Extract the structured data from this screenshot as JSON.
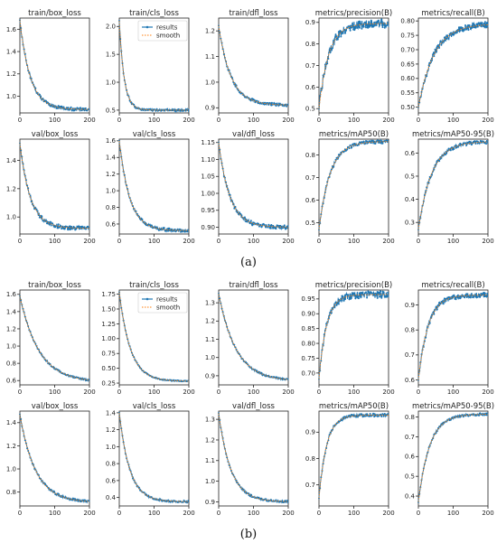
{
  "captions": {
    "a": "(a)",
    "b": "(b)"
  },
  "legend": {
    "results": "results",
    "smooth": "smooth"
  },
  "colors": {
    "results": "#1f77b4",
    "smooth": "#ff7f0e",
    "axis": "#222222"
  },
  "chart_data": [
    {
      "type": "line",
      "panel": "a",
      "title": "train/box_loss",
      "xlim": [
        0,
        200
      ],
      "ylim": [
        0.85,
        1.7
      ],
      "xticks": [
        0,
        100,
        200
      ],
      "yticks": [
        1.0,
        1.2,
        1.4,
        1.6
      ],
      "ytick_labels": [
        "1.0",
        "1.2",
        "1.4",
        "1.6"
      ],
      "y0": 1.68,
      "yend": 0.88,
      "k": 30,
      "noise": 0.015,
      "series": [
        {
          "name": "results"
        },
        {
          "name": "smooth"
        }
      ]
    },
    {
      "type": "line",
      "panel": "a",
      "title": "train/cls_loss",
      "xlim": [
        0,
        200
      ],
      "ylim": [
        0.45,
        2.15
      ],
      "xticks": [
        0,
        100,
        200
      ],
      "yticks": [
        0.5,
        1.0,
        1.5,
        2.0
      ],
      "ytick_labels": [
        "0.5",
        "1.0",
        "1.5",
        "2.0"
      ],
      "y0": 2.1,
      "yend": 0.5,
      "k": 14,
      "noise": 0.02,
      "legend": true,
      "series": [
        {
          "name": "results"
        },
        {
          "name": "smooth"
        }
      ]
    },
    {
      "type": "line",
      "panel": "a",
      "title": "train/dfl_loss",
      "xlim": [
        0,
        200
      ],
      "ylim": [
        0.88,
        1.25
      ],
      "xticks": [
        0,
        100,
        200
      ],
      "yticks": [
        0.9,
        1.0,
        1.1,
        1.2
      ],
      "ytick_labels": [
        "0.9",
        "1.0",
        "1.1",
        "1.2"
      ],
      "y0": 1.22,
      "yend": 0.91,
      "k": 35,
      "noise": 0.006,
      "series": [
        {
          "name": "results"
        },
        {
          "name": "smooth"
        }
      ]
    },
    {
      "type": "line",
      "panel": "a",
      "title": "metrics/precision(B)",
      "xlim": [
        0,
        200
      ],
      "ylim": [
        0.48,
        0.92
      ],
      "xticks": [
        0,
        100,
        200
      ],
      "yticks": [
        0.5,
        0.6,
        0.7,
        0.8,
        0.9
      ],
      "ytick_labels": [
        "0.5",
        "0.6",
        "0.7",
        "0.8",
        "0.9"
      ],
      "y0": 0.5,
      "yend": 0.895,
      "k": 28,
      "noise": 0.02,
      "series": [
        {
          "name": "results"
        },
        {
          "name": "smooth"
        }
      ]
    },
    {
      "type": "line",
      "panel": "a",
      "title": "metrics/recall(B)",
      "xlim": [
        0,
        200
      ],
      "ylim": [
        0.48,
        0.81
      ],
      "xticks": [
        0,
        100,
        200
      ],
      "yticks": [
        0.5,
        0.55,
        0.6,
        0.65,
        0.7,
        0.75,
        0.8
      ],
      "ytick_labels": [
        "0.50",
        "0.55",
        "0.60",
        "0.65",
        "0.70",
        "0.75",
        "0.80"
      ],
      "y0": 0.5,
      "yend": 0.79,
      "k": 45,
      "noise": 0.012,
      "series": [
        {
          "name": "results"
        },
        {
          "name": "smooth"
        }
      ]
    },
    {
      "type": "line",
      "panel": "a",
      "title": "val/box_loss",
      "xlim": [
        0,
        200
      ],
      "ylim": [
        0.88,
        1.55
      ],
      "xticks": [
        0,
        100,
        200
      ],
      "yticks": [
        1.0,
        1.2,
        1.4
      ],
      "ytick_labels": [
        "1.0",
        "1.2",
        "1.4"
      ],
      "y0": 1.52,
      "yend": 0.92,
      "k": 30,
      "noise": 0.015,
      "series": [
        {
          "name": "results"
        },
        {
          "name": "smooth"
        }
      ]
    },
    {
      "type": "line",
      "panel": "a",
      "title": "val/cls_loss",
      "xlim": [
        0,
        200
      ],
      "ylim": [
        0.48,
        1.62
      ],
      "xticks": [
        0,
        100,
        200
      ],
      "yticks": [
        0.6,
        0.8,
        1.0,
        1.2,
        1.4,
        1.6
      ],
      "ytick_labels": [
        "0.6",
        "0.8",
        "1.0",
        "1.2",
        "1.4",
        "1.6"
      ],
      "y0": 1.6,
      "yend": 0.52,
      "k": 30,
      "noise": 0.02,
      "series": [
        {
          "name": "results"
        },
        {
          "name": "smooth"
        }
      ]
    },
    {
      "type": "line",
      "panel": "a",
      "title": "val/dfl_loss",
      "xlim": [
        0,
        200
      ],
      "ylim": [
        0.88,
        1.16
      ],
      "xticks": [
        0,
        100,
        200
      ],
      "yticks": [
        0.9,
        0.95,
        1.0,
        1.05,
        1.1,
        1.15
      ],
      "ytick_labels": [
        "0.90",
        "0.95",
        "1.00",
        "1.05",
        "1.10",
        "1.15"
      ],
      "y0": 1.15,
      "yend": 0.9,
      "k": 32,
      "noise": 0.006,
      "series": [
        {
          "name": "results"
        },
        {
          "name": "smooth"
        }
      ]
    },
    {
      "type": "line",
      "panel": "a",
      "title": "metrics/mAP50(B)",
      "xlim": [
        0,
        200
      ],
      "ylim": [
        0.45,
        0.87
      ],
      "xticks": [
        0,
        100,
        200
      ],
      "yticks": [
        0.5,
        0.6,
        0.7,
        0.8
      ],
      "ytick_labels": [
        "0.5",
        "0.6",
        "0.7",
        "0.8"
      ],
      "y0": 0.47,
      "yend": 0.86,
      "k": 32,
      "noise": 0.008,
      "series": [
        {
          "name": "results"
        },
        {
          "name": "smooth"
        }
      ]
    },
    {
      "type": "line",
      "panel": "a",
      "title": "metrics/mAP50-95(B)",
      "xlim": [
        0,
        200
      ],
      "ylim": [
        0.25,
        0.66
      ],
      "xticks": [
        0,
        100,
        200
      ],
      "yticks": [
        0.3,
        0.4,
        0.5,
        0.6
      ],
      "ytick_labels": [
        "0.3",
        "0.4",
        "0.5",
        "0.6"
      ],
      "y0": 0.27,
      "yend": 0.65,
      "k": 38,
      "noise": 0.008,
      "series": [
        {
          "name": "results"
        },
        {
          "name": "smooth"
        }
      ]
    },
    {
      "type": "line",
      "panel": "b",
      "title": "train/box_loss",
      "xlim": [
        0,
        200
      ],
      "ylim": [
        0.55,
        1.65
      ],
      "xticks": [
        0,
        100,
        200
      ],
      "yticks": [
        0.6,
        0.8,
        1.0,
        1.2,
        1.4,
        1.6
      ],
      "ytick_labels": [
        "0.6",
        "0.8",
        "1.0",
        "1.2",
        "1.4",
        "1.6"
      ],
      "y0": 1.58,
      "yend": 0.58,
      "k": 55,
      "noise": 0.01,
      "series": [
        {
          "name": "results"
        },
        {
          "name": "smooth"
        }
      ]
    },
    {
      "type": "line",
      "panel": "b",
      "title": "train/cls_loss",
      "xlim": [
        0,
        200
      ],
      "ylim": [
        0.22,
        1.82
      ],
      "xticks": [
        0,
        100,
        200
      ],
      "yticks": [
        0.25,
        0.5,
        0.75,
        1.0,
        1.25,
        1.5,
        1.75
      ],
      "ytick_labels": [
        "0.25",
        "0.50",
        "0.75",
        "1.00",
        "1.25",
        "1.50",
        "1.75"
      ],
      "y0": 1.78,
      "yend": 0.28,
      "k": 32,
      "noise": 0.01,
      "legend": true,
      "series": [
        {
          "name": "results"
        },
        {
          "name": "smooth"
        }
      ]
    },
    {
      "type": "line",
      "panel": "b",
      "title": "train/dfl_loss",
      "xlim": [
        0,
        200
      ],
      "ylim": [
        0.85,
        1.37
      ],
      "xticks": [
        0,
        100,
        200
      ],
      "yticks": [
        0.9,
        1.0,
        1.1,
        1.2,
        1.3
      ],
      "ytick_labels": [
        "0.9",
        "1.0",
        "1.1",
        "1.2",
        "1.3"
      ],
      "y0": 1.35,
      "yend": 0.87,
      "k": 50,
      "noise": 0.005,
      "series": [
        {
          "name": "results"
        },
        {
          "name": "smooth"
        }
      ]
    },
    {
      "type": "line",
      "panel": "b",
      "title": "metrics/precision(B)",
      "xlim": [
        0,
        200
      ],
      "ylim": [
        0.66,
        0.98
      ],
      "xticks": [
        0,
        100,
        200
      ],
      "yticks": [
        0.7,
        0.75,
        0.8,
        0.85,
        0.9,
        0.95
      ],
      "ytick_labels": [
        "0.70",
        "0.75",
        "0.80",
        "0.85",
        "0.90",
        "0.95"
      ],
      "y0": 0.68,
      "yend": 0.965,
      "k": 22,
      "noise": 0.012,
      "series": [
        {
          "name": "results"
        },
        {
          "name": "smooth"
        }
      ]
    },
    {
      "type": "line",
      "panel": "b",
      "title": "metrics/recall(B)",
      "xlim": [
        0,
        200
      ],
      "ylim": [
        0.58,
        0.96
      ],
      "xticks": [
        0,
        100,
        200
      ],
      "yticks": [
        0.6,
        0.7,
        0.8,
        0.9
      ],
      "ytick_labels": [
        "0.6",
        "0.7",
        "0.8",
        "0.9"
      ],
      "y0": 0.6,
      "yend": 0.94,
      "k": 28,
      "noise": 0.01,
      "series": [
        {
          "name": "results"
        },
        {
          "name": "smooth"
        }
      ]
    },
    {
      "type": "line",
      "panel": "b",
      "title": "val/box_loss",
      "xlim": [
        0,
        200
      ],
      "ylim": [
        0.68,
        1.5
      ],
      "xticks": [
        0,
        100,
        200
      ],
      "yticks": [
        0.8,
        1.0,
        1.2,
        1.4
      ],
      "ytick_labels": [
        "0.8",
        "1.0",
        "1.2",
        "1.4"
      ],
      "y0": 1.47,
      "yend": 0.71,
      "k": 45,
      "noise": 0.01,
      "series": [
        {
          "name": "results"
        },
        {
          "name": "smooth"
        }
      ]
    },
    {
      "type": "line",
      "panel": "b",
      "title": "val/cls_loss",
      "xlim": [
        0,
        200
      ],
      "ylim": [
        0.3,
        1.42
      ],
      "xticks": [
        0,
        100,
        200
      ],
      "yticks": [
        0.4,
        0.6,
        0.8,
        1.0,
        1.2,
        1.4
      ],
      "ytick_labels": [
        "0.4",
        "0.6",
        "0.8",
        "1.0",
        "1.2",
        "1.4"
      ],
      "y0": 1.4,
      "yend": 0.35,
      "k": 30,
      "noise": 0.012,
      "series": [
        {
          "name": "results"
        },
        {
          "name": "smooth"
        }
      ]
    },
    {
      "type": "line",
      "panel": "b",
      "title": "val/dfl_loss",
      "xlim": [
        0,
        200
      ],
      "ylim": [
        0.88,
        1.34
      ],
      "xticks": [
        0,
        100,
        200
      ],
      "yticks": [
        0.9,
        1.0,
        1.1,
        1.2,
        1.3
      ],
      "ytick_labels": [
        "0.9",
        "1.0",
        "1.1",
        "1.2",
        "1.3"
      ],
      "y0": 1.33,
      "yend": 0.9,
      "k": 35,
      "noise": 0.005,
      "series": [
        {
          "name": "results"
        },
        {
          "name": "smooth"
        }
      ]
    },
    {
      "type": "line",
      "panel": "b",
      "title": "metrics/mAP50(B)",
      "xlim": [
        0,
        200
      ],
      "ylim": [
        0.62,
        0.98
      ],
      "xticks": [
        0,
        100,
        200
      ],
      "yticks": [
        0.7,
        0.8,
        0.9
      ],
      "ytick_labels": [
        "0.7",
        "0.8",
        "0.9"
      ],
      "y0": 0.65,
      "yend": 0.965,
      "k": 22,
      "noise": 0.006,
      "series": [
        {
          "name": "results"
        },
        {
          "name": "smooth"
        }
      ]
    },
    {
      "type": "line",
      "panel": "b",
      "title": "metrics/mAP50-95(B)",
      "xlim": [
        0,
        200
      ],
      "ylim": [
        0.35,
        0.83
      ],
      "xticks": [
        0,
        100,
        200
      ],
      "yticks": [
        0.4,
        0.5,
        0.6,
        0.7,
        0.8
      ],
      "ytick_labels": [
        "0.4",
        "0.5",
        "0.6",
        "0.7",
        "0.8"
      ],
      "y0": 0.37,
      "yend": 0.815,
      "k": 32,
      "noise": 0.006,
      "series": [
        {
          "name": "results"
        },
        {
          "name": "smooth"
        }
      ]
    }
  ]
}
